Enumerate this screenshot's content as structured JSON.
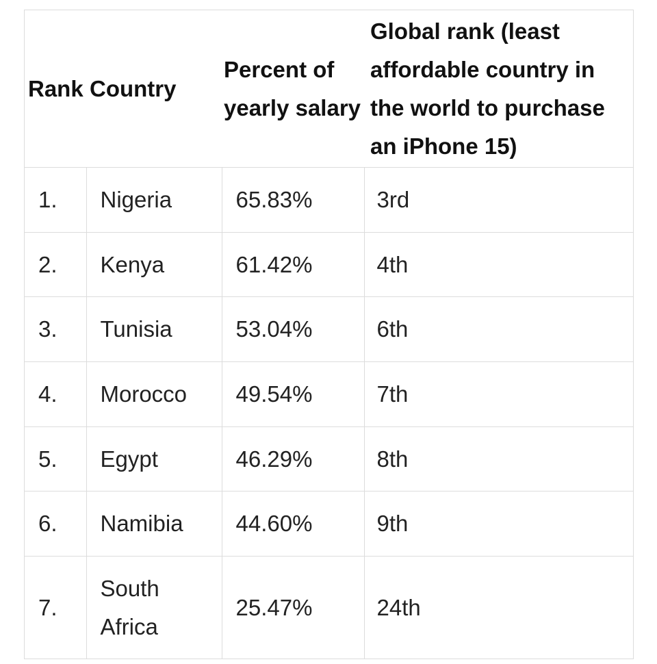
{
  "table": {
    "headers": {
      "rank": "Rank",
      "country": "Country",
      "percent": "Percent of yearly salary",
      "global_rank": "Global rank (least affordable country in the world to purchase an iPhone 15)"
    },
    "rows": [
      {
        "rank": "1.",
        "country": "Nigeria",
        "percent": "65.83%",
        "global_rank": "3rd"
      },
      {
        "rank": "2.",
        "country": "Kenya",
        "percent": "61.42%",
        "global_rank": "4th"
      },
      {
        "rank": "3.",
        "country": "Tunisia",
        "percent": "53.04%",
        "global_rank": "6th"
      },
      {
        "rank": "4.",
        "country": "Morocco",
        "percent": "49.54%",
        "global_rank": "7th"
      },
      {
        "rank": "5.",
        "country": "Egypt",
        "percent": "46.29%",
        "global_rank": "8th"
      },
      {
        "rank": "6.",
        "country": "Namibia",
        "percent": "44.60%",
        "global_rank": "9th"
      },
      {
        "rank": "7.",
        "country": "South Africa",
        "percent": "25.47%",
        "global_rank": "24th"
      }
    ]
  }
}
